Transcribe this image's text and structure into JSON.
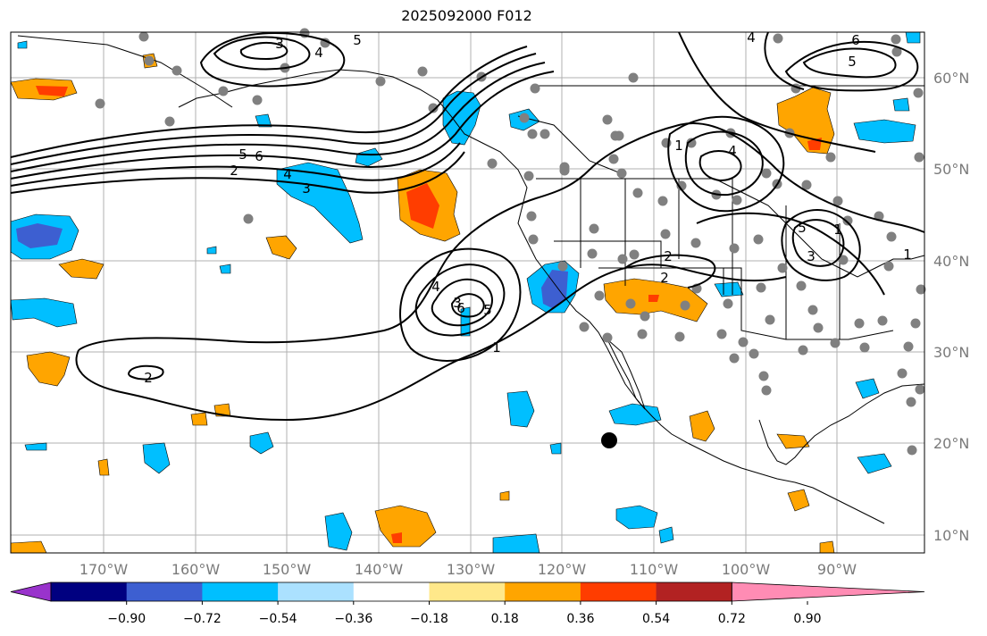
{
  "title": "2025092000 F012",
  "lon_labels": [
    "170°W",
    "160°W",
    "150°W",
    "140°W",
    "130°W",
    "120°W",
    "110°W",
    "100°W",
    "90°W"
  ],
  "lat_labels": [
    "60°N",
    "50°N",
    "40°N",
    "30°N",
    "20°N",
    "10°N"
  ],
  "colorbar": {
    "colors": [
      "#9933cc",
      "#000080",
      "#3d5fd1",
      "#00bfff",
      "#abe1ff",
      "#ffffff",
      "#ffe88a",
      "#ffa500",
      "#ff3d00",
      "#b22222",
      "#ff8cb4"
    ],
    "tick_labels": [
      "−0.90",
      "−0.72",
      "−0.54",
      "−0.36",
      "−0.18",
      "0.18",
      "0.36",
      "0.54",
      "0.72",
      "0.90"
    ]
  },
  "contour_labels": [
    {
      "text": "3"
    },
    {
      "text": "4"
    },
    {
      "text": "5"
    },
    {
      "text": "5"
    },
    {
      "text": "6"
    },
    {
      "text": "4"
    },
    {
      "text": "3"
    },
    {
      "text": "2"
    },
    {
      "text": "2"
    },
    {
      "text": "4"
    },
    {
      "text": "3"
    },
    {
      "text": "5"
    },
    {
      "text": "6"
    },
    {
      "text": "1"
    },
    {
      "text": "2"
    },
    {
      "text": "2"
    },
    {
      "text": "1"
    },
    {
      "text": "4"
    },
    {
      "text": "5"
    },
    {
      "text": "1"
    },
    {
      "text": "4"
    },
    {
      "text": "6"
    },
    {
      "text": "5"
    },
    {
      "text": "3"
    },
    {
      "text": "1"
    }
  ]
}
